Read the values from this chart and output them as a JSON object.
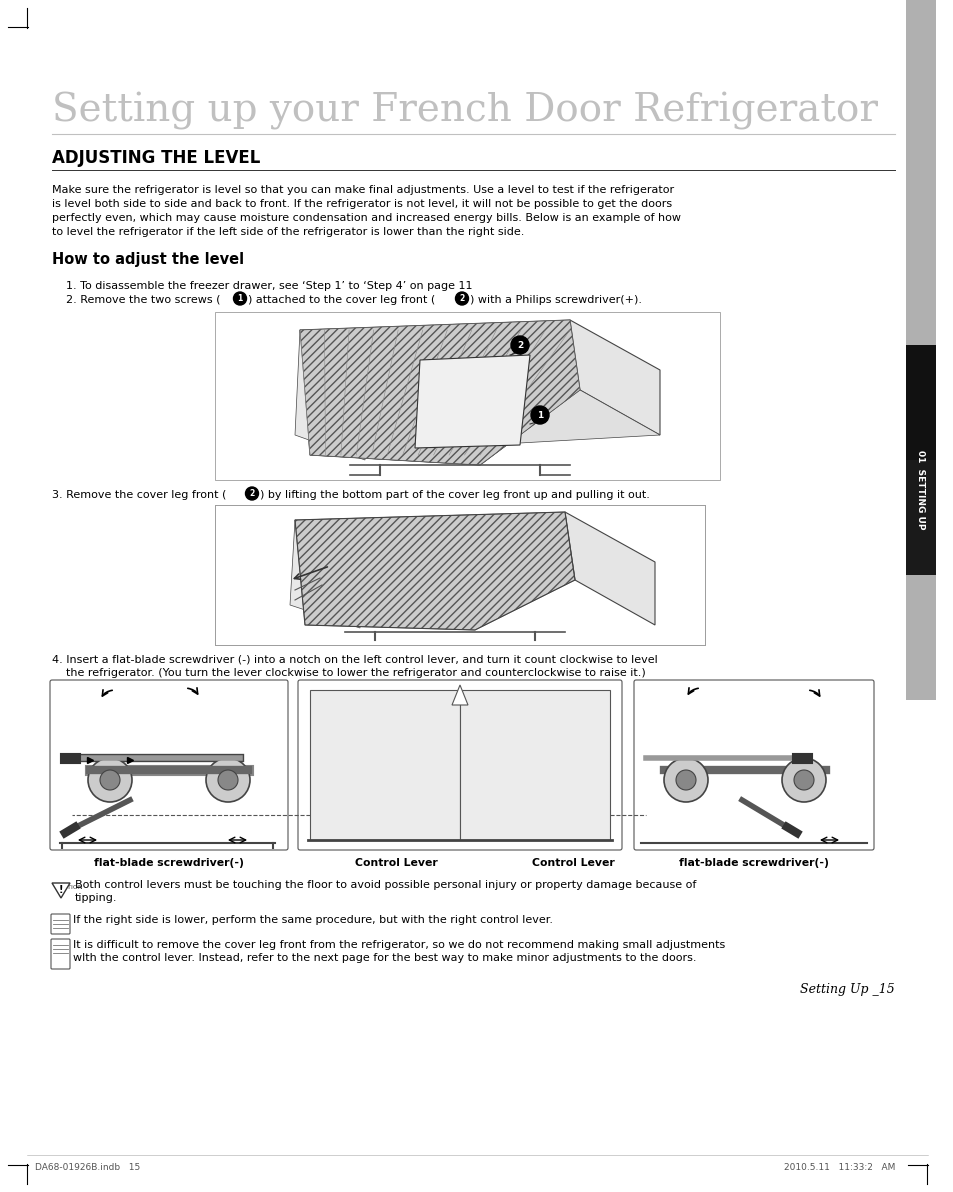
{
  "bg_color": "#ffffff",
  "page_title": "Setting up your French Door Refrigerator",
  "section_title": "ADJUSTING THE LEVEL",
  "section_body_lines": [
    "Make sure the refrigerator is level so that you can make final adjustments. Use a level to test if the refrigerator",
    "is level both side to side and back to front. If the refrigerator is not level, it will not be possible to get the doors",
    "perfectly even, which may cause moisture condensation and increased energy bills. Below is an example of how",
    "to level the refrigerator if the left side of the refrigerator is lower than the right side."
  ],
  "subsection_title": "How to adjust the level",
  "step1": "    1. To disassemble the freezer drawer, see ‘Step 1’ to ‘Step 4’ on page 11",
  "step2_parts": [
    "    2. Remove the two screws (",
    "1",
    ") attached to the cover leg front (",
    "2",
    ") with a Philips screwdriver(+)."
  ],
  "step3_parts": [
    "3. Remove the cover leg front (",
    "2",
    ") by lifting the bottom part of the cover leg front up and pulling it out."
  ],
  "step4_line1": "4. Insert a flat-blade screwdriver (-) into a notch on the left control lever, and turn it count clockwise to level",
  "step4_line2": "    the refrigerator. (You turn the lever clockwise to lower the refrigerator and counterclockwise to raise it.)",
  "caption_left": "flat-blade screwdriver(-)",
  "caption_center_left": "Control Lever",
  "caption_center_right": "Control Lever",
  "caption_right": "flat-blade screwdriver(-)",
  "caution_text_line1": "Both control levers must be touching the floor to avoid possible personal injury or property damage because of",
  "caution_text_line2": "tipping.",
  "note1": "If the right side is lower, perform the same procedure, but with the right control lever.",
  "note2_line1": "It is difficult to remove the cover leg front from the refrigerator, so we do not recommend making small adjustments",
  "note2_line2": "wlth the control lever. Instead, refer to the next page for the best way to make minor adjustments to the doors.",
  "page_num": "Setting Up _15",
  "footer_left": "DA68-01926B.indb   15",
  "footer_right": "2010.5.11   11:33:2   AM",
  "sidebar_text": "01  SETTING UP"
}
